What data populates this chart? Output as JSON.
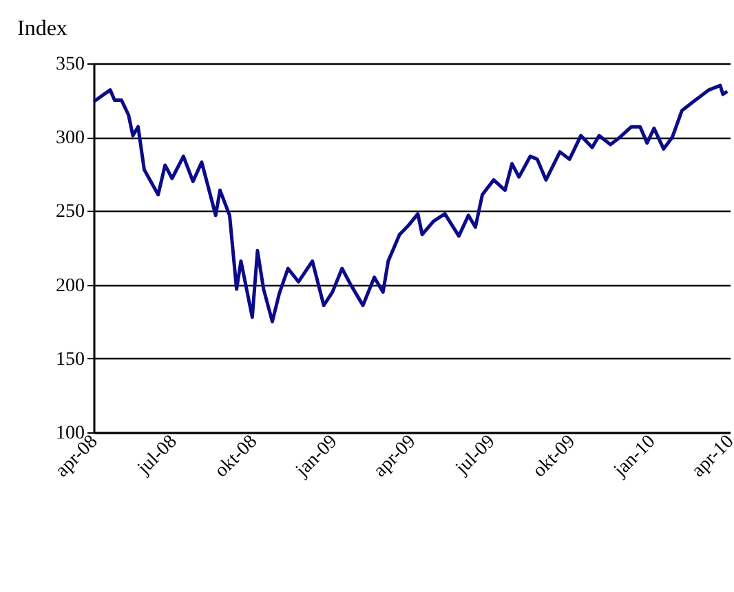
{
  "chart_data": {
    "type": "line",
    "ylabel": "Index",
    "x": [
      "2008-04-01",
      "2008-04-20",
      "2008-04-25",
      "2008-05-03",
      "2008-05-11",
      "2008-05-16",
      "2008-05-22",
      "2008-05-29",
      "2008-06-14",
      "2008-06-22",
      "2008-06-30",
      "2008-07-13",
      "2008-07-24",
      "2008-08-03",
      "2008-08-11",
      "2008-08-19",
      "2008-08-24",
      "2008-09-04",
      "2008-09-12",
      "2008-09-17",
      "2008-09-30",
      "2008-10-06",
      "2008-10-13",
      "2008-10-23",
      "2008-10-31",
      "2008-11-10",
      "2008-11-22",
      "2008-12-08",
      "2008-12-21",
      "2008-12-31",
      "2009-01-11",
      "2009-01-21",
      "2009-02-04",
      "2009-02-17",
      "2009-02-27",
      "2009-03-05",
      "2009-03-18",
      "2009-03-28",
      "2009-04-08",
      "2009-04-13",
      "2009-04-26",
      "2009-05-09",
      "2009-05-25",
      "2009-06-05",
      "2009-06-13",
      "2009-06-21",
      "2009-07-04",
      "2009-07-17",
      "2009-07-25",
      "2009-08-02",
      "2009-08-15",
      "2009-08-23",
      "2009-09-02",
      "2009-09-18",
      "2009-09-29",
      "2009-10-12",
      "2009-10-25",
      "2009-11-02",
      "2009-11-15",
      "2009-11-26",
      "2009-12-09",
      "2009-12-19",
      "2009-12-27",
      "2010-01-04",
      "2010-01-15",
      "2010-01-25",
      "2010-02-05",
      "2010-02-18",
      "2010-03-08",
      "2010-03-21",
      "2010-03-24",
      "2010-03-29"
    ],
    "series": [
      {
        "color": "#0b0b8a",
        "values": [
          324,
          332,
          325,
          325,
          315,
          301,
          307,
          278,
          261,
          281,
          272,
          287,
          270,
          283,
          265,
          247,
          264,
          247,
          197,
          216,
          178,
          223,
          197,
          175,
          194,
          211,
          202,
          216,
          186,
          195,
          211,
          200,
          186,
          205,
          195,
          216,
          234,
          240,
          248,
          234,
          243,
          248,
          233,
          247,
          239,
          261,
          271,
          264,
          282,
          273,
          287,
          285,
          271,
          290,
          285,
          301,
          293,
          301,
          295,
          300,
          307,
          307,
          296,
          306,
          292,
          300,
          318,
          324,
          332,
          335,
          329,
          331
        ]
      }
    ],
    "xlim": [
      "2008-04-01",
      "2010-04-01"
    ],
    "xticks": [
      {
        "value": "2008-04-01",
        "label": "apr-08"
      },
      {
        "value": "2008-07-01",
        "label": "jul-08"
      },
      {
        "value": "2008-10-01",
        "label": "okt-08"
      },
      {
        "value": "2009-01-01",
        "label": "jan-09"
      },
      {
        "value": "2009-04-01",
        "label": "apr-09"
      },
      {
        "value": "2009-07-01",
        "label": "jul-09"
      },
      {
        "value": "2009-10-01",
        "label": "okt-09"
      },
      {
        "value": "2010-01-01",
        "label": "jan-10"
      },
      {
        "value": "2010-04-01",
        "label": "apr-10"
      }
    ],
    "ylim": [
      100,
      350
    ],
    "yticks": [
      100,
      150,
      200,
      250,
      300,
      350
    ],
    "grid": "y"
  }
}
